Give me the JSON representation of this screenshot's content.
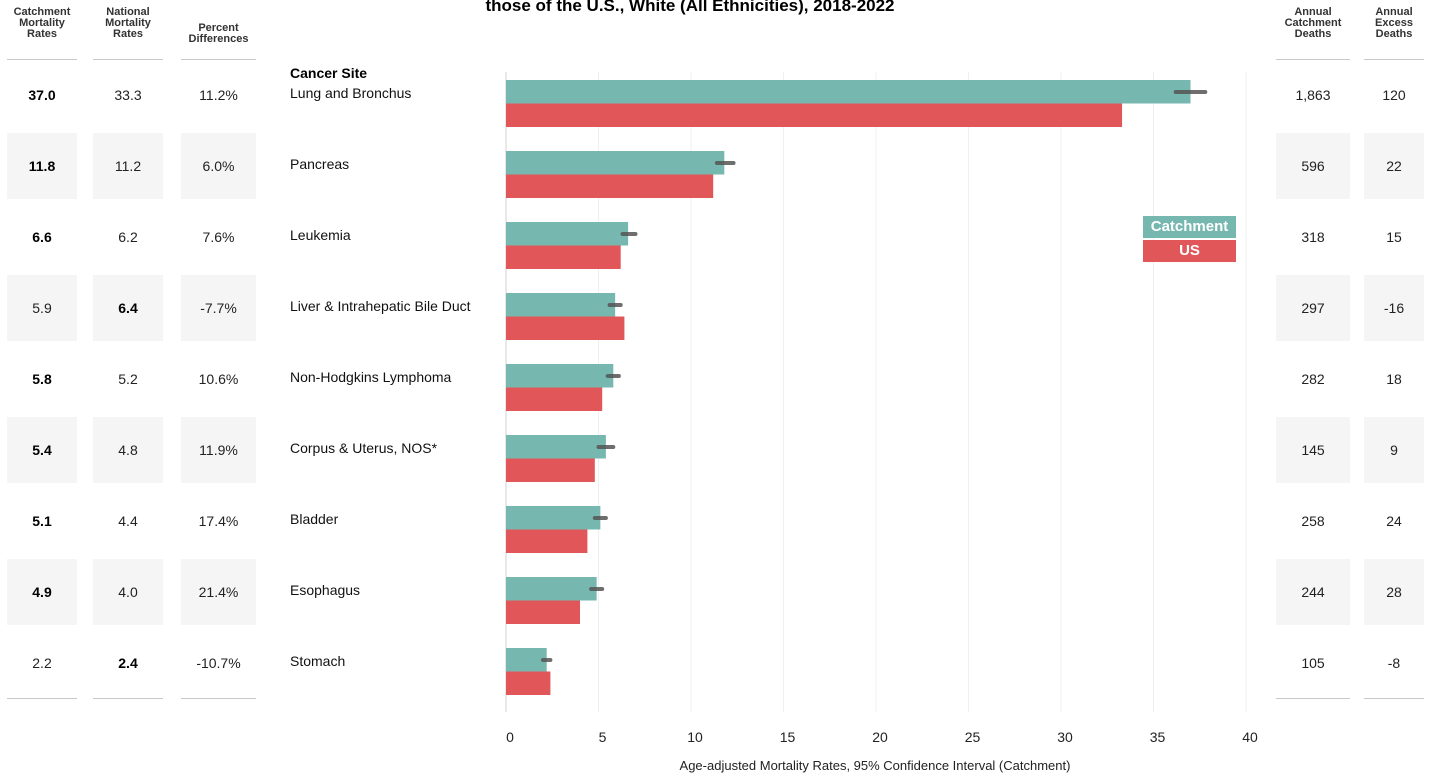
{
  "title": "those of the U.S., White (All Ethnicities), 2018-2022",
  "columns": {
    "catchment_rates": [
      "Catchment",
      "Mortality",
      "Rates"
    ],
    "national_rates": [
      "National",
      "Mortality",
      "Rates"
    ],
    "percent_diff": [
      "Percent",
      "Differences"
    ],
    "annual_deaths": [
      "Annual",
      "Catchment",
      "Deaths"
    ],
    "excess_deaths": [
      "Annual",
      "Excess",
      "Deaths"
    ]
  },
  "site_header": "Cancer Site",
  "rows": [
    {
      "site": "Lung and Bronchus",
      "catchment": "37.0",
      "national": "33.3",
      "pct": "11.2%",
      "deaths": "1,863",
      "excess": "120",
      "bold": "catchment"
    },
    {
      "site": "Pancreas",
      "catchment": "11.8",
      "national": "11.2",
      "pct": "6.0%",
      "deaths": "596",
      "excess": "22",
      "bold": "catchment"
    },
    {
      "site": "Leukemia",
      "catchment": "6.6",
      "national": "6.2",
      "pct": "7.6%",
      "deaths": "318",
      "excess": "15",
      "bold": "catchment"
    },
    {
      "site": "Liver & Intrahepatic Bile Duct",
      "catchment": "5.9",
      "national": "6.4",
      "pct": "-7.7%",
      "deaths": "297",
      "excess": "-16",
      "bold": "national"
    },
    {
      "site": "Non-Hodgkins Lymphoma",
      "catchment": "5.8",
      "national": "5.2",
      "pct": "10.6%",
      "deaths": "282",
      "excess": "18",
      "bold": "catchment"
    },
    {
      "site": "Corpus & Uterus, NOS*",
      "catchment": "5.4",
      "national": "4.8",
      "pct": "11.9%",
      "deaths": "145",
      "excess": "9",
      "bold": "catchment"
    },
    {
      "site": "Bladder",
      "catchment": "5.1",
      "national": "4.4",
      "pct": "17.4%",
      "deaths": "258",
      "excess": "24",
      "bold": "catchment"
    },
    {
      "site": "Esophagus",
      "catchment": "4.9",
      "national": "4.0",
      "pct": "21.4%",
      "deaths": "244",
      "excess": "28",
      "bold": "catchment"
    },
    {
      "site": "Stomach",
      "catchment": "2.2",
      "national": "2.4",
      "pct": "-10.7%",
      "deaths": "105",
      "excess": "-8",
      "bold": "national"
    }
  ],
  "chart_data": {
    "type": "bar",
    "orientation": "horizontal",
    "categories": [
      "Lung and Bronchus",
      "Pancreas",
      "Leukemia",
      "Liver & Intrahepatic Bile Duct",
      "Non-Hodgkins Lymphoma",
      "Corpus & Uterus, NOS*",
      "Bladder",
      "Esophagus",
      "Stomach"
    ],
    "series": [
      {
        "name": "Catchment",
        "color": "#76b7b0",
        "values": [
          37.0,
          11.8,
          6.6,
          5.9,
          5.8,
          5.4,
          5.1,
          4.9,
          2.2
        ],
        "ci": [
          [
            36.2,
            37.8
          ],
          [
            11.4,
            12.3
          ],
          [
            6.3,
            7.0
          ],
          [
            5.6,
            6.2
          ],
          [
            5.5,
            6.1
          ],
          [
            5.0,
            5.8
          ],
          [
            4.8,
            5.4
          ],
          [
            4.6,
            5.2
          ],
          [
            2.0,
            2.4
          ]
        ]
      },
      {
        "name": "US",
        "color": "#e15759",
        "values": [
          33.3,
          11.2,
          6.2,
          6.4,
          5.2,
          4.8,
          4.4,
          4.0,
          2.4
        ]
      }
    ],
    "xlim": [
      0,
      40
    ],
    "xticks": [
      "0",
      "5",
      "10",
      "15",
      "20",
      "25",
      "30",
      "35",
      "40"
    ],
    "xlabel": "Age-adjusted Mortality Rates, 95% Confidence Interval (Catchment)",
    "legend": [
      "Catchment",
      "US"
    ],
    "legend_position": "right"
  }
}
